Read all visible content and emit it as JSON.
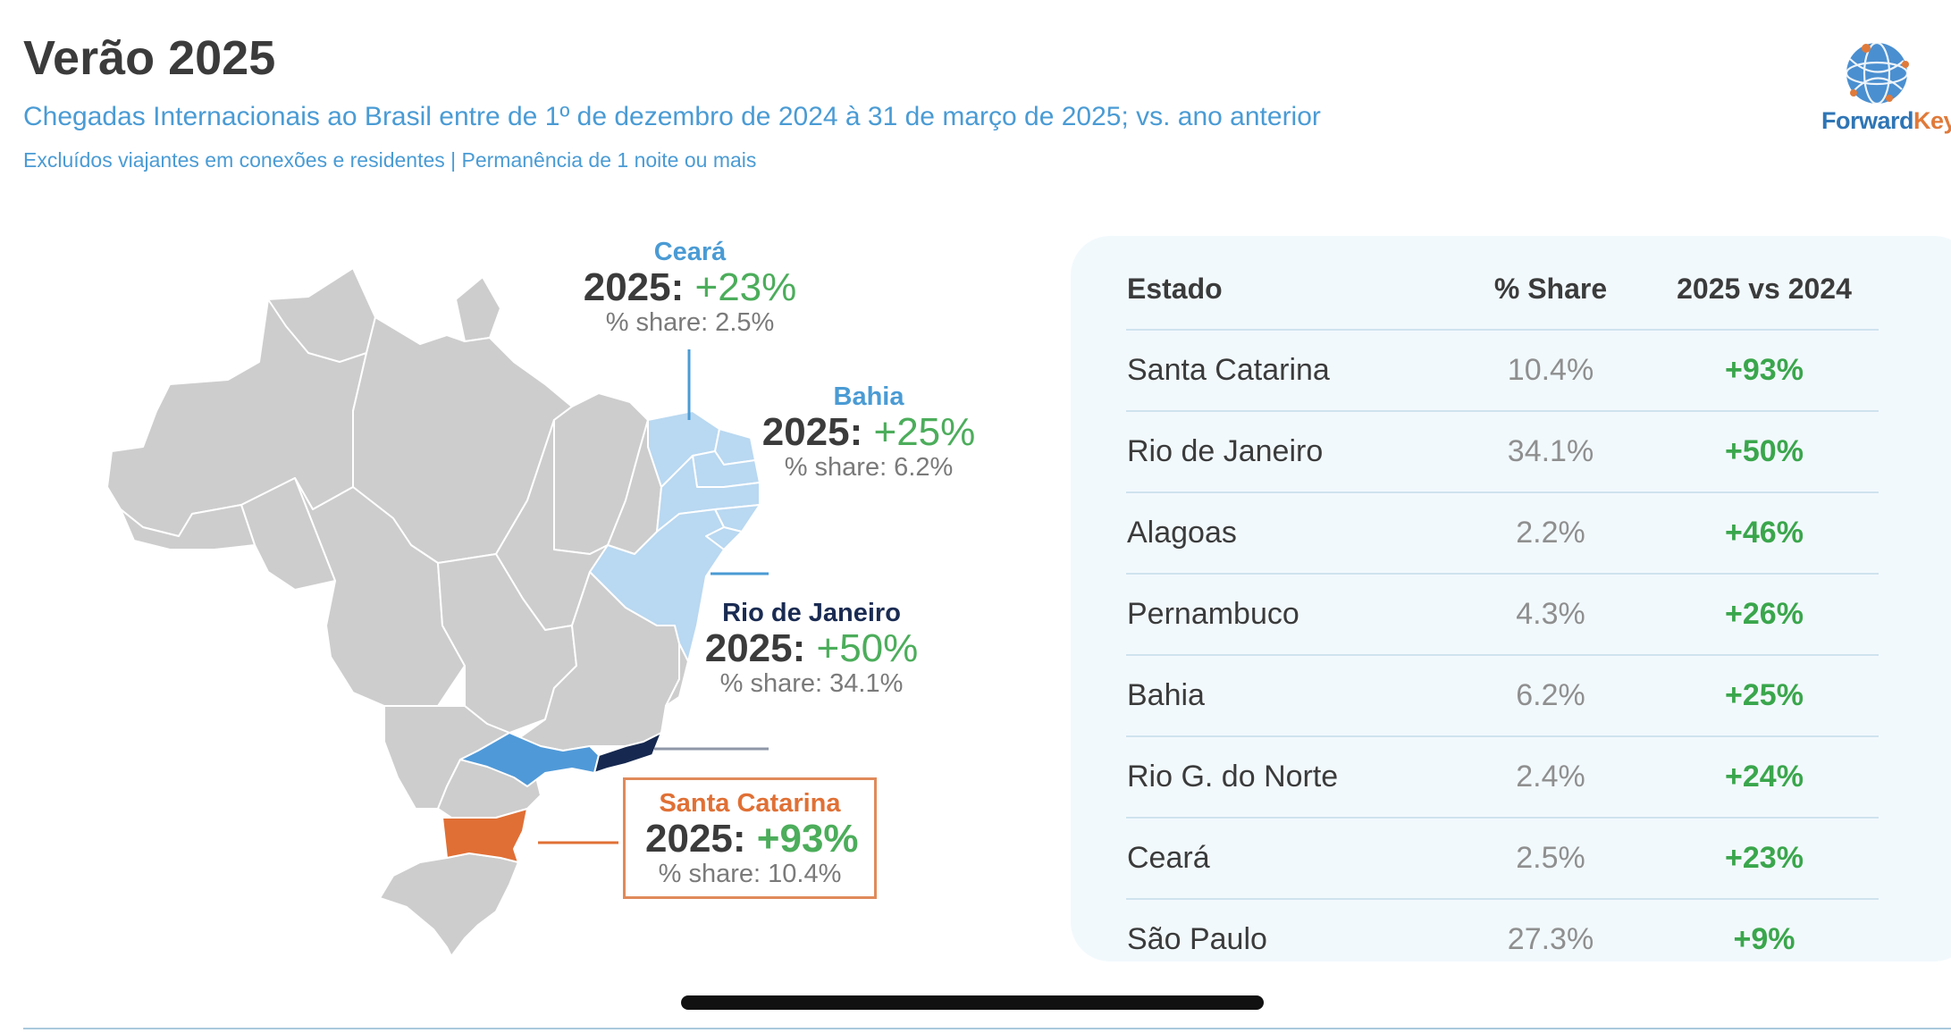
{
  "header": {
    "title": "Verão 2025",
    "subtitle": "Chegadas Internacionais ao Brasil entre de 1º de dezembro de 2024 à 31 de março de 2025; vs. ano anterior",
    "note": "Excluídos viajantes em conexões e residentes | Permanência de 1 noite ou mais"
  },
  "logo": {
    "part1": "Forward",
    "part2": "Keys",
    "icon": "globe-icon"
  },
  "map": {
    "colors": {
      "base": "#cdcdcd",
      "light": "#b9d8f1",
      "mid": "#4f99d8",
      "dark": "#16284f",
      "orange": "#e06f35",
      "border": "#ffffff"
    },
    "callouts": [
      {
        "id": "ceara",
        "name": "Ceará",
        "year_label": "2025:",
        "growth": "+23%",
        "share": "% share: 2.5%",
        "color": "#4a9bd4"
      },
      {
        "id": "bahia",
        "name": "Bahia",
        "year_label": "2025:",
        "growth": "+25%",
        "share": "% share: 6.2%",
        "color": "#4a9bd4"
      },
      {
        "id": "rio",
        "name": "Rio de Janeiro",
        "year_label": "2025:",
        "growth": "+50%",
        "share": "% share: 34.1%",
        "color": "#1a2b52"
      },
      {
        "id": "santa-catarina",
        "name": "Santa Catarina",
        "year_label": "2025:",
        "growth": "+93%",
        "share": "% share: 10.4%",
        "color": "#e07035"
      }
    ]
  },
  "table": {
    "headers": {
      "state": "Estado",
      "share": "% Share",
      "change": "2025 vs 2024"
    },
    "rows": [
      {
        "state": "Santa Catarina",
        "share": "10.4%",
        "change": "+93%"
      },
      {
        "state": "Rio de Janeiro",
        "share": "34.1%",
        "change": "+50%"
      },
      {
        "state": "Alagoas",
        "share": "2.2%",
        "change": "+46%"
      },
      {
        "state": "Pernambuco",
        "share": "4.3%",
        "change": "+26%"
      },
      {
        "state": "Bahia",
        "share": "6.2%",
        "change": "+25%"
      },
      {
        "state": "Rio G. do Norte",
        "share": "2.4%",
        "change": "+24%"
      },
      {
        "state": "Ceará",
        "share": "2.5%",
        "change": "+23%"
      },
      {
        "state": "São Paulo",
        "share": "27.3%",
        "change": "+9%"
      }
    ]
  }
}
